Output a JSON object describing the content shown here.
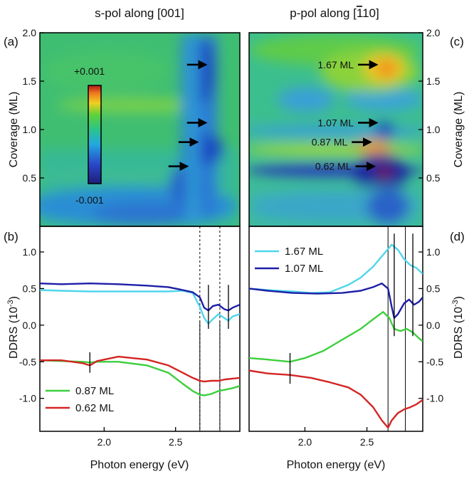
{
  "figure": {
    "left_title": "s-pol along [001]",
    "right_title_prefix": "p-pol along [",
    "right_title_bar": "1",
    "right_title_suffix": "10]",
    "xlabel": "Photon energy (eV)",
    "ylabel_top": "Coverage (ML)",
    "ylabel_bottom": "DDRS (10",
    "ylabel_bottom_exp": "-3",
    "ylabel_bottom_close": ")",
    "panel_a": "(a)",
    "panel_b": "(b)",
    "panel_c": "(c)",
    "panel_d": "(d)",
    "colorbar_max": "+0.001",
    "colorbar_min": "-0.001",
    "colors": {
      "c167": "#4fd6ea",
      "c107": "#1e1ea8",
      "c087": "#3ccf3c",
      "c062": "#d42424"
    }
  },
  "chart_data": [
    {
      "id": "a",
      "type": "heatmap",
      "title": "s-pol along [001]",
      "ylabel": "Coverage (ML)",
      "xlim": [
        1.55,
        2.95
      ],
      "ylim": [
        0,
        2.0
      ],
      "yticks": [
        "0.5",
        "1.0",
        "1.5",
        "2.0"
      ],
      "colorbar": {
        "min": -0.001,
        "max": 0.001
      },
      "arrows": [
        {
          "x": 2.73,
          "y": 1.67
        },
        {
          "x": 2.73,
          "y": 1.07
        },
        {
          "x": 2.67,
          "y": 0.87
        },
        {
          "x": 2.6,
          "y": 0.62
        }
      ]
    },
    {
      "id": "c",
      "type": "heatmap",
      "title": "p-pol along [-110]",
      "ylabel": "Coverage (ML)",
      "xlim": [
        1.55,
        2.95
      ],
      "ylim": [
        0,
        2.0
      ],
      "yticks": [
        "0.5",
        "1.0",
        "1.5",
        "2.0"
      ],
      "markers": [
        {
          "label": "1.67 ML",
          "x": 2.6,
          "y": 1.67
        },
        {
          "label": "1.07 ML",
          "x": 2.6,
          "y": 1.07
        },
        {
          "label": "0.87 ML",
          "x": 2.55,
          "y": 0.87
        },
        {
          "label": "0.62 ML",
          "x": 2.58,
          "y": 0.62
        }
      ]
    },
    {
      "id": "b",
      "type": "line",
      "xlabel": "Photon energy (eV)",
      "ylabel": "DDRS (10-3)",
      "xlim": [
        1.55,
        2.95
      ],
      "ylim": [
        -1.45,
        1.35
      ],
      "xticks": [
        "2.0",
        "2.5"
      ],
      "yticks": [
        "-1.0",
        "-0.5",
        "0.0",
        "0.5",
        "1.0"
      ],
      "marker_lines": [
        1.9,
        2.73,
        2.87
      ],
      "dashed_lines": [
        2.67,
        2.81
      ],
      "series": [
        {
          "name": "1.67 ML",
          "color_key": "c167",
          "x": [
            1.55,
            1.7,
            1.9,
            2.1,
            2.3,
            2.45,
            2.55,
            2.62,
            2.67,
            2.7,
            2.73,
            2.76,
            2.8,
            2.84,
            2.87,
            2.9,
            2.95
          ],
          "y": [
            0.48,
            0.47,
            0.46,
            0.46,
            0.46,
            0.46,
            0.47,
            0.44,
            0.25,
            0.1,
            0.02,
            0.08,
            0.15,
            0.1,
            0.06,
            0.12,
            0.15
          ]
        },
        {
          "name": "1.07 ML",
          "color_key": "c107",
          "x": [
            1.55,
            1.7,
            1.9,
            2.1,
            2.3,
            2.45,
            2.55,
            2.62,
            2.67,
            2.7,
            2.73,
            2.76,
            2.8,
            2.84,
            2.87,
            2.9,
            2.95
          ],
          "y": [
            0.57,
            0.56,
            0.57,
            0.56,
            0.54,
            0.52,
            0.48,
            0.45,
            0.38,
            0.24,
            0.2,
            0.26,
            0.28,
            0.22,
            0.2,
            0.24,
            0.28
          ]
        },
        {
          "name": "0.87 ML",
          "color_key": "c087",
          "x": [
            1.55,
            1.7,
            1.85,
            1.9,
            1.95,
            2.1,
            2.3,
            2.45,
            2.55,
            2.62,
            2.67,
            2.7,
            2.75,
            2.8,
            2.85,
            2.9,
            2.95
          ],
          "y": [
            -0.48,
            -0.49,
            -0.5,
            -0.51,
            -0.5,
            -0.5,
            -0.55,
            -0.65,
            -0.8,
            -0.9,
            -0.95,
            -0.96,
            -0.94,
            -0.9,
            -0.88,
            -0.86,
            -0.83
          ]
        },
        {
          "name": "0.62 ML",
          "color_key": "c062",
          "x": [
            1.55,
            1.7,
            1.85,
            1.9,
            1.95,
            2.1,
            2.3,
            2.45,
            2.55,
            2.62,
            2.67,
            2.7,
            2.75,
            2.8,
            2.85,
            2.9,
            2.95
          ],
          "y": [
            -0.48,
            -0.48,
            -0.52,
            -0.55,
            -0.49,
            -0.43,
            -0.47,
            -0.55,
            -0.65,
            -0.72,
            -0.76,
            -0.77,
            -0.76,
            -0.76,
            -0.74,
            -0.73,
            -0.72
          ]
        }
      ],
      "legend": [
        "0.87 ML",
        "0.62 ML"
      ]
    },
    {
      "id": "d",
      "type": "line",
      "xlabel": "Photon energy (eV)",
      "ylabel": "DDRS (10-3)",
      "xlim": [
        1.55,
        2.95
      ],
      "ylim": [
        -1.45,
        1.35
      ],
      "xticks": [
        "2.0",
        "2.5"
      ],
      "yticks": [
        "-1.0",
        "-0.5",
        "0.0",
        "0.5",
        "1.0"
      ],
      "marker_lines": [
        1.88,
        2.72,
        2.87
      ],
      "full_lines": [
        2.67,
        2.81
      ],
      "series": [
        {
          "name": "1.67 ML",
          "color_key": "c167",
          "x": [
            1.55,
            1.7,
            1.9,
            2.05,
            2.2,
            2.35,
            2.45,
            2.55,
            2.6,
            2.65,
            2.7,
            2.75,
            2.8,
            2.85,
            2.9,
            2.95
          ],
          "y": [
            0.5,
            0.48,
            0.46,
            0.44,
            0.45,
            0.55,
            0.65,
            0.8,
            0.9,
            1.0,
            1.1,
            1.03,
            0.9,
            0.82,
            0.78,
            0.7
          ]
        },
        {
          "name": "1.07 ML",
          "color_key": "c107",
          "x": [
            1.55,
            1.7,
            1.9,
            2.1,
            2.3,
            2.45,
            2.55,
            2.62,
            2.67,
            2.7,
            2.72,
            2.75,
            2.8,
            2.84,
            2.88,
            2.92,
            2.95
          ],
          "y": [
            0.5,
            0.47,
            0.44,
            0.43,
            0.44,
            0.47,
            0.52,
            0.57,
            0.5,
            0.25,
            0.1,
            0.15,
            0.3,
            0.35,
            0.28,
            0.32,
            0.38
          ]
        },
        {
          "name": "0.87 ML",
          "color_key": "c087",
          "x": [
            1.55,
            1.7,
            1.88,
            2.0,
            2.15,
            2.3,
            2.45,
            2.55,
            2.63,
            2.68,
            2.72,
            2.77,
            2.82,
            2.87,
            2.92,
            2.95
          ],
          "y": [
            -0.45,
            -0.47,
            -0.5,
            -0.45,
            -0.35,
            -0.2,
            -0.05,
            0.08,
            0.18,
            0.1,
            -0.05,
            -0.08,
            -0.05,
            -0.1,
            -0.18,
            -0.22
          ]
        },
        {
          "name": "0.62 ML",
          "color_key": "c062",
          "x": [
            1.55,
            1.7,
            1.88,
            2.05,
            2.2,
            2.35,
            2.45,
            2.55,
            2.62,
            2.67,
            2.7,
            2.75,
            2.8,
            2.85,
            2.9,
            2.95
          ],
          "y": [
            -0.62,
            -0.66,
            -0.68,
            -0.72,
            -0.78,
            -0.85,
            -0.95,
            -1.12,
            -1.3,
            -1.4,
            -1.3,
            -1.2,
            -1.15,
            -1.12,
            -1.08,
            -1.02
          ]
        }
      ],
      "legend": [
        "1.67 ML",
        "1.07 ML"
      ]
    }
  ]
}
